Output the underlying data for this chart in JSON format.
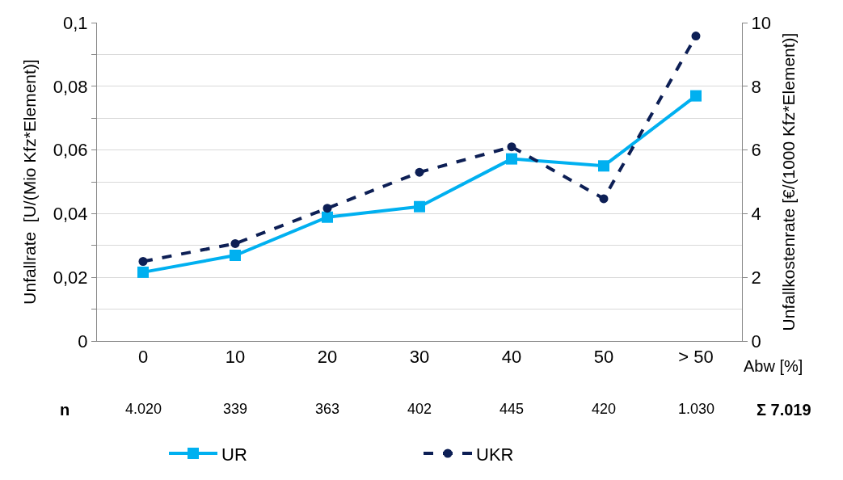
{
  "chart_data": {
    "type": "line",
    "categories": [
      "0",
      "10",
      "20",
      "30",
      "40",
      "50",
      "> 50"
    ],
    "xlabel": "Abw [%]",
    "ylabel": "Unfallrate  [U/(Mio Kfz*Element)]",
    "y2label": "Unfallkostenrate [€/(1000 Kfz*Element)]",
    "series": [
      {
        "name": "UR",
        "color": "#00b0f0",
        "values": [
          0.0216,
          0.0269,
          0.0389,
          0.0422,
          0.0572,
          0.055,
          0.077
        ],
        "marker": "square",
        "line_style": "solid"
      },
      {
        "name": "UKR",
        "color": "#0d1f55",
        "values": [
          2.5,
          3.06,
          4.17,
          5.3,
          6.1,
          4.47,
          9.58
        ],
        "marker": "circle",
        "line_style": "dashed",
        "axis": "y2"
      }
    ],
    "ylim": [
      0,
      0.1
    ],
    "yticks": [
      0,
      {
        "value": 0.01,
        "label": null
      },
      {
        "value": 0.02,
        "label": "0,02"
      },
      {
        "value": 0.03,
        "label": null
      },
      {
        "value": 0.04,
        "label": "0,04"
      },
      {
        "value": 0.05,
        "label": null
      },
      {
        "value": 0.06,
        "label": "0,06"
      },
      {
        "value": 0.07,
        "label": null
      },
      {
        "value": 0.08,
        "label": "0,08"
      },
      {
        "value": 0.09,
        "label": null
      },
      {
        "value": 0.1,
        "label": "0,1"
      }
    ],
    "y2lim": [
      0,
      10
    ],
    "y2ticks": [
      0,
      2,
      4,
      6,
      8,
      10
    ],
    "grid": "y",
    "legend": "bottom",
    "annotations": [
      "n",
      "4.020",
      "339",
      "363",
      "402",
      "445",
      "420",
      "1.030",
      "Σ 7.019"
    ]
  }
}
